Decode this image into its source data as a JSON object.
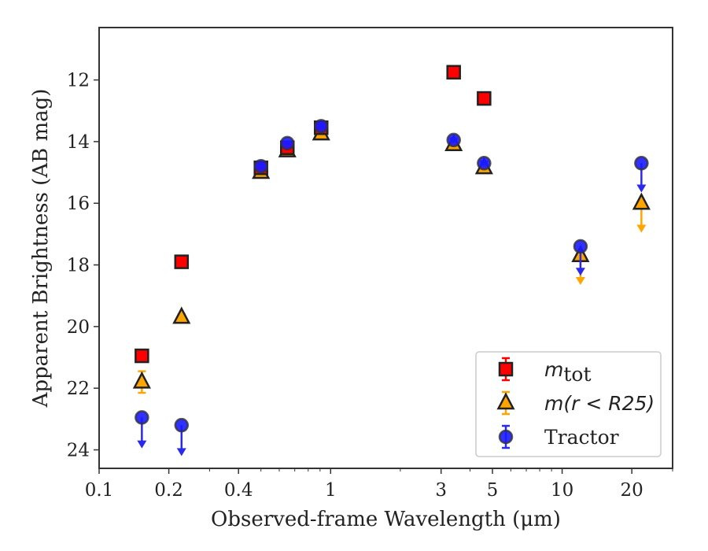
{
  "chart_data": {
    "type": "scatter",
    "title": "",
    "xlabel": "Observed-frame Wavelength (μm)",
    "ylabel": "Apparent Brightness (AB mag)",
    "x_scale": "log",
    "xlim": [
      0.1,
      30
    ],
    "ylim": [
      24.6,
      10.3
    ],
    "y_inverted": true,
    "grid": false,
    "legend_position": "lower-right",
    "x_ticks": [
      {
        "value": 0.1,
        "label": "0.1"
      },
      {
        "value": 0.2,
        "label": "0.2"
      },
      {
        "value": 0.4,
        "label": "0.4"
      },
      {
        "value": 1,
        "label": "1"
      },
      {
        "value": 3,
        "label": "3"
      },
      {
        "value": 5,
        "label": "5"
      },
      {
        "value": 10,
        "label": "10"
      },
      {
        "value": 20,
        "label": "20"
      }
    ],
    "y_ticks": [
      {
        "value": 12,
        "label": "12"
      },
      {
        "value": 14,
        "label": "14"
      },
      {
        "value": 16,
        "label": "16"
      },
      {
        "value": 18,
        "label": "18"
      },
      {
        "value": 20,
        "label": "20"
      },
      {
        "value": 22,
        "label": "22"
      },
      {
        "value": 24,
        "label": "24"
      }
    ],
    "series": [
      {
        "name": "m_tot",
        "marker": "square",
        "color": "#ff0000",
        "error_color": "#ff0000",
        "points": [
          {
            "x": 0.153,
            "y": 20.95,
            "err": 0.1
          },
          {
            "x": 0.227,
            "y": 17.9,
            "err": 0.05
          },
          {
            "x": 0.5,
            "y": 14.85,
            "err": 0.05
          },
          {
            "x": 0.65,
            "y": 14.2,
            "err": 0.05
          },
          {
            "x": 0.91,
            "y": 13.55,
            "err": 0.05
          },
          {
            "x": 3.4,
            "y": 11.75,
            "err": 0.05
          },
          {
            "x": 4.6,
            "y": 12.6,
            "err": 0.05
          }
        ]
      },
      {
        "name": "m(r < R25)",
        "marker": "triangle",
        "color": "#ffa500",
        "error_color": "#ffa500",
        "points": [
          {
            "x": 0.153,
            "y": 21.8,
            "err": 0.35
          },
          {
            "x": 0.227,
            "y": 19.7,
            "err": 0.1
          },
          {
            "x": 0.5,
            "y": 15.0,
            "err": 0.05
          },
          {
            "x": 0.65,
            "y": 14.3,
            "err": 0.05
          },
          {
            "x": 0.91,
            "y": 13.75,
            "err": 0.05
          },
          {
            "x": 3.4,
            "y": 14.1,
            "err": 0.05
          },
          {
            "x": 4.6,
            "y": 14.85,
            "err": 0.05
          },
          {
            "x": 12,
            "y": 17.7,
            "upper_limit": true,
            "arrow_to": 18.6
          },
          {
            "x": 22,
            "y": 16.0,
            "upper_limit": true,
            "arrow_to": 16.9
          }
        ]
      },
      {
        "name": "Tractor",
        "marker": "circle",
        "color": "#1a1aff",
        "error_color": "#2a2aee",
        "points": [
          {
            "x": 0.153,
            "y": 22.95,
            "upper_limit": true,
            "arrow_to": 23.9
          },
          {
            "x": 0.227,
            "y": 23.2,
            "upper_limit": true,
            "arrow_to": 24.15
          },
          {
            "x": 0.5,
            "y": 14.8,
            "err": 0.05
          },
          {
            "x": 0.65,
            "y": 14.05,
            "err": 0.05
          },
          {
            "x": 0.91,
            "y": 13.5,
            "err": 0.05
          },
          {
            "x": 3.4,
            "y": 13.95,
            "err": 0.05
          },
          {
            "x": 4.6,
            "y": 14.7,
            "err": 0.05
          },
          {
            "x": 12,
            "y": 17.4,
            "upper_limit": true,
            "arrow_to": 18.3
          },
          {
            "x": 22,
            "y": 14.7,
            "upper_limit": true,
            "arrow_to": 15.6
          }
        ]
      }
    ],
    "legend": {
      "entries": [
        {
          "series": 0,
          "var": "m",
          "sub": "tot",
          "tail": ""
        },
        {
          "series": 1,
          "var": "m",
          "sub": "",
          "tail": "(r < R25)"
        },
        {
          "series": 2,
          "var": "",
          "sub": "",
          "tail": "Tractor"
        }
      ]
    }
  }
}
